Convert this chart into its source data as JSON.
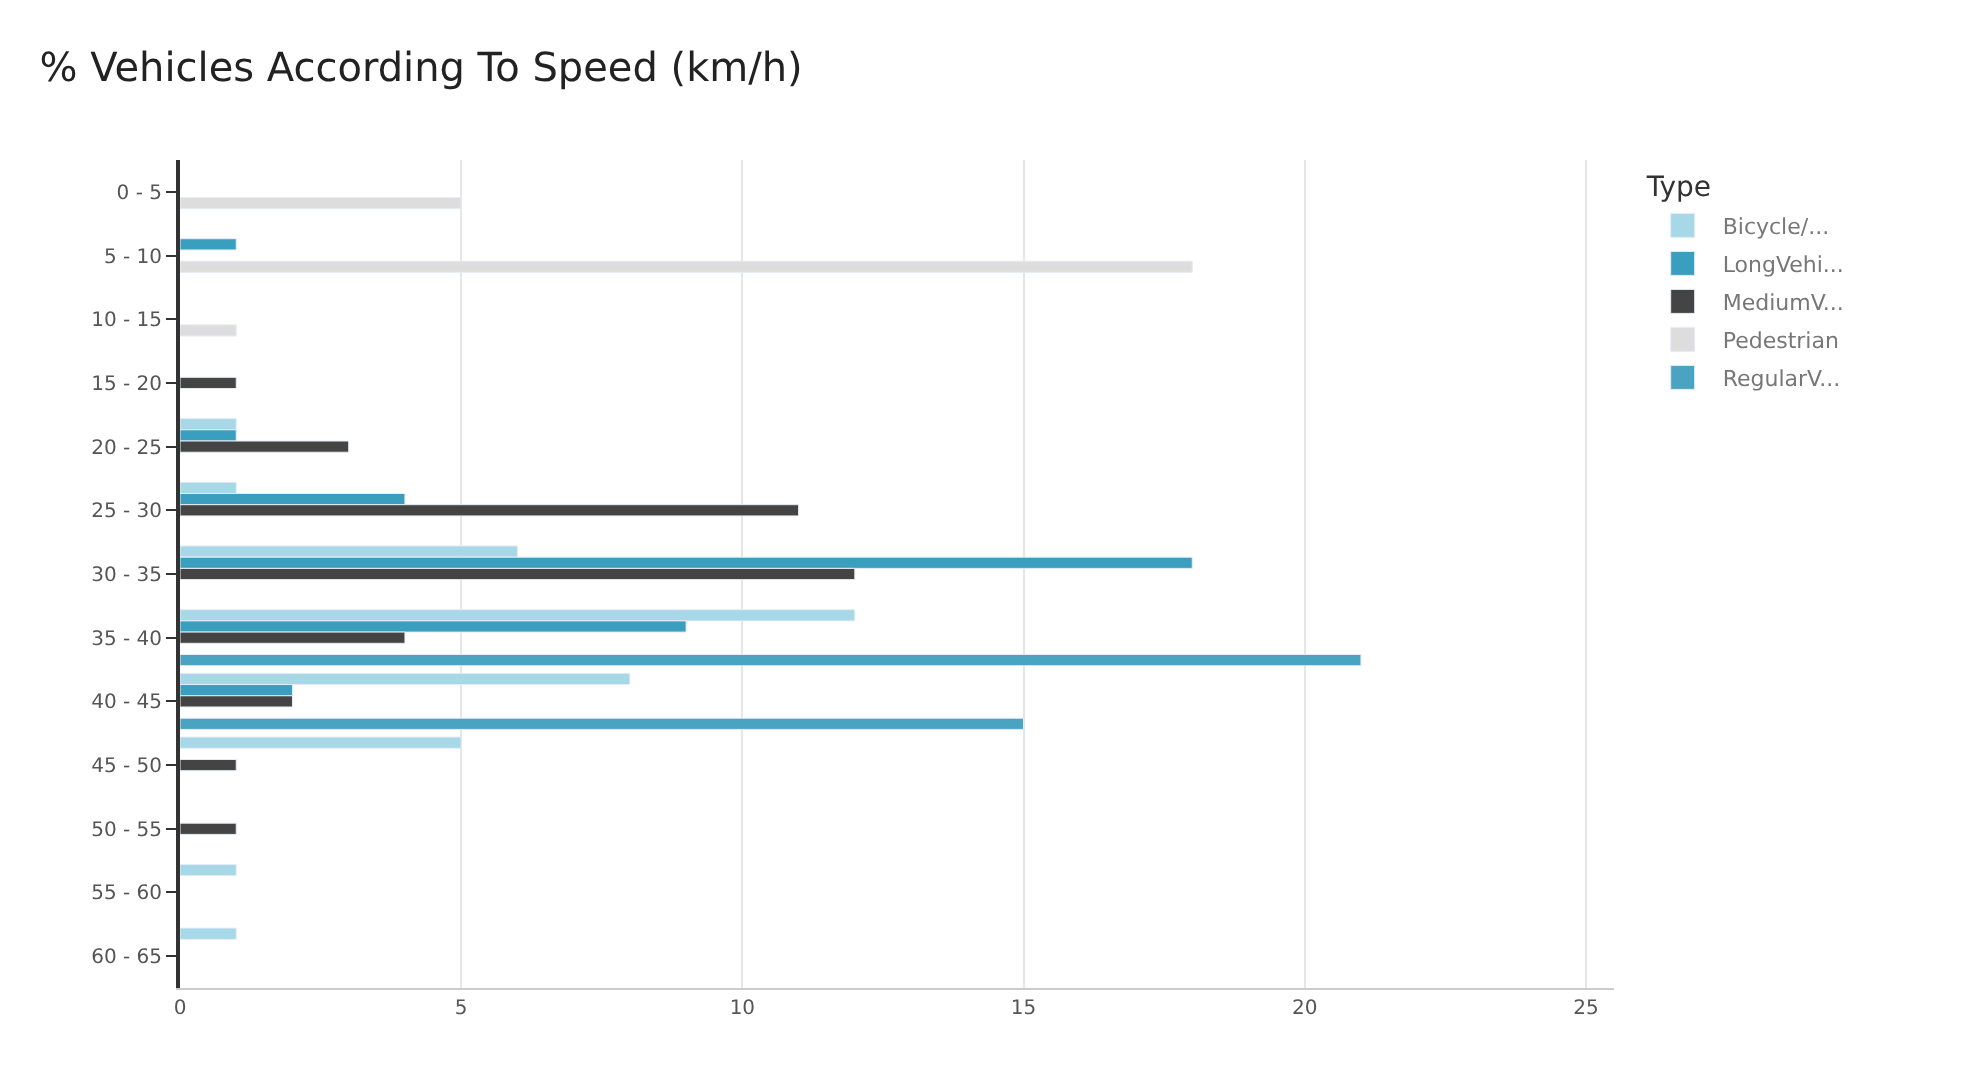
{
  "chart_data": {
    "type": "bar",
    "orientation": "horizontal",
    "title": "% Vehicles According To Speed (km/h)",
    "legend_title": "Type",
    "legend": "right",
    "grid": "x",
    "categories": [
      "0 - 5",
      "5 - 10",
      "10 - 15",
      "15 - 20",
      "20 - 25",
      "25 - 30",
      "30 - 35",
      "35 - 40",
      "40 - 45",
      "45 - 50",
      "50 - 55",
      "55 - 60",
      "60 - 65"
    ],
    "xlim": [
      0,
      25.5
    ],
    "xticks": [
      0,
      5,
      10,
      15,
      20,
      25
    ],
    "series": [
      {
        "name": "Bicycle/...",
        "color": "#a6d8e8",
        "values": [
          null,
          null,
          null,
          null,
          1,
          1,
          6,
          12,
          8,
          5,
          null,
          1,
          1
        ]
      },
      {
        "name": "LongVehi...",
        "color": "#3a9fbf",
        "values": [
          null,
          1,
          null,
          null,
          1,
          4,
          18,
          9,
          2,
          null,
          null,
          null,
          null
        ]
      },
      {
        "name": "MediumV...",
        "color": "#444444",
        "values": [
          null,
          null,
          null,
          1,
          3,
          11,
          12,
          4,
          2,
          1,
          1,
          null,
          null
        ]
      },
      {
        "name": "Pedestrian",
        "color": "#dddddd",
        "values": [
          5,
          18,
          1,
          null,
          null,
          null,
          null,
          null,
          null,
          null,
          null,
          null,
          null
        ]
      },
      {
        "name": "RegularV...",
        "color": "#4aa3c0",
        "values": [
          null,
          null,
          null,
          null,
          null,
          null,
          null,
          21,
          15,
          null,
          null,
          null,
          null
        ]
      }
    ]
  }
}
